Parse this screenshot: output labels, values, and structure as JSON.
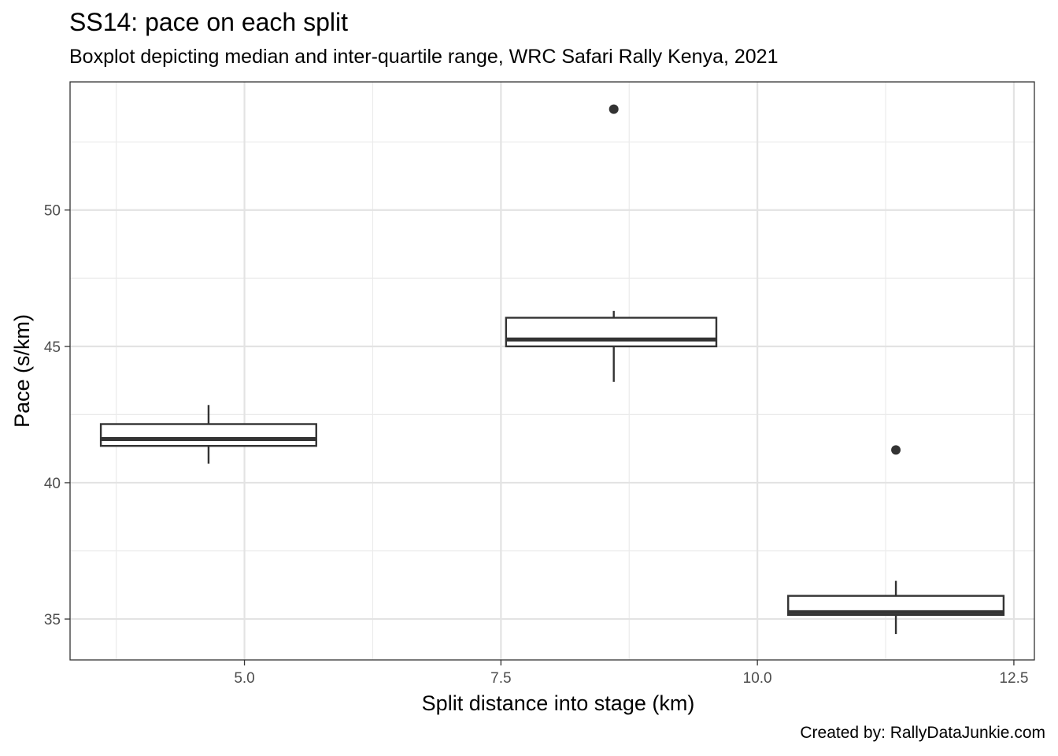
{
  "chart_data": {
    "type": "boxplot",
    "title": "SS14: pace on each split",
    "subtitle": "Boxplot depicting median and inter-quartile range, WRC Safari Rally Kenya, 2021",
    "xlabel": "Split distance into stage (km)",
    "ylabel": "Pace (s/km)",
    "caption": "Created by: RallyDataJunkie.com",
    "xlim": [
      3.3,
      12.7
    ],
    "ylim": [
      33.5,
      54.7
    ],
    "x_ticks": [
      5.0,
      7.5,
      10.0,
      12.5
    ],
    "x_tick_labels": [
      "5.0",
      "7.5",
      "10.0",
      "12.5"
    ],
    "y_ticks": [
      35,
      40,
      45,
      50
    ],
    "y_tick_labels": [
      "35",
      "40",
      "45",
      "50"
    ],
    "grid": true,
    "boxes": [
      {
        "x": 4.65,
        "xmin": 3.6,
        "xmax": 5.7,
        "lower_whisker": 40.7,
        "q1": 41.35,
        "median": 41.6,
        "q3": 42.15,
        "upper_whisker": 42.85,
        "outliers": []
      },
      {
        "x": 8.6,
        "xmin": 7.55,
        "xmax": 9.6,
        "lower_whisker": 43.7,
        "q1": 45.0,
        "median": 45.25,
        "q3": 46.05,
        "upper_whisker": 46.3,
        "outliers": [
          53.7
        ]
      },
      {
        "x": 11.35,
        "xmin": 10.3,
        "xmax": 12.4,
        "lower_whisker": 34.45,
        "q1": 35.15,
        "median": 35.25,
        "q3": 35.85,
        "upper_whisker": 36.4,
        "outliers": [
          41.2
        ]
      }
    ]
  }
}
